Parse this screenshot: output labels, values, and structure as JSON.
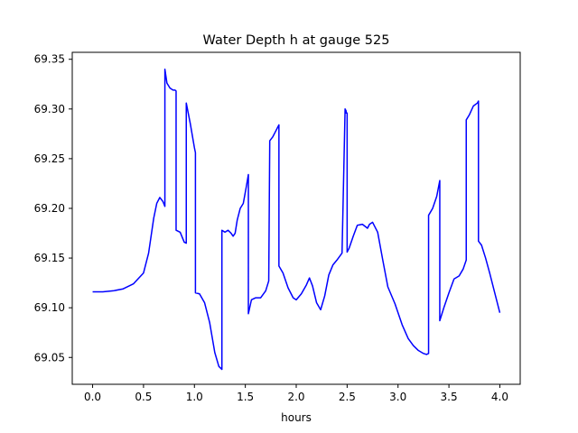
{
  "chart_data": {
    "type": "line",
    "title": "Water Depth h at gauge 525",
    "xlabel": "hours",
    "ylabel": "",
    "xlim": [
      -0.2,
      4.2
    ],
    "ylim": [
      69.023,
      69.357
    ],
    "xticks": [
      0.0,
      0.5,
      1.0,
      1.5,
      2.0,
      2.5,
      3.0,
      3.5,
      4.0
    ],
    "xtick_labels": [
      "0.0",
      "0.5",
      "1.0",
      "1.5",
      "2.0",
      "2.5",
      "3.0",
      "3.5",
      "4.0"
    ],
    "yticks": [
      69.05,
      69.1,
      69.15,
      69.2,
      69.25,
      69.3,
      69.35
    ],
    "ytick_labels": [
      "69.05",
      "69.10",
      "69.15",
      "69.20",
      "69.25",
      "69.30",
      "69.35"
    ],
    "grid": false,
    "line_color": "#0000ff",
    "series": [
      {
        "x": [
          0.0,
          0.1,
          0.2,
          0.3,
          0.4,
          0.5,
          0.55,
          0.6,
          0.63,
          0.66,
          0.69,
          0.71,
          0.71,
          0.73,
          0.76,
          0.79,
          0.81,
          0.82,
          0.82,
          0.86,
          0.9,
          0.92,
          0.92,
          0.96,
          1.0,
          1.01,
          1.01,
          1.05,
          1.1,
          1.15,
          1.2,
          1.24,
          1.27,
          1.27,
          1.3,
          1.33,
          1.36,
          1.38,
          1.4,
          1.42,
          1.45,
          1.48,
          1.51,
          1.53,
          1.53,
          1.56,
          1.6,
          1.65,
          1.7,
          1.73,
          1.74,
          1.74,
          1.77,
          1.8,
          1.82,
          1.83,
          1.83,
          1.87,
          1.92,
          1.97,
          2.0,
          2.05,
          2.1,
          2.13,
          2.16,
          2.2,
          2.24,
          2.28,
          2.32,
          2.36,
          2.4,
          2.45,
          2.48,
          2.49,
          2.49,
          2.5,
          2.5,
          2.52,
          2.56,
          2.6,
          2.65,
          2.7,
          2.72,
          2.75,
          2.8,
          2.85,
          2.9,
          2.97,
          3.04,
          3.1,
          3.15,
          3.2,
          3.25,
          3.28,
          3.3,
          3.3,
          3.34,
          3.38,
          3.41,
          3.41,
          3.45,
          3.5,
          3.55,
          3.6,
          3.64,
          3.67,
          3.67,
          3.7,
          3.74,
          3.78,
          3.79,
          3.79,
          3.82,
          3.86,
          3.9,
          3.95,
          4.0
        ],
        "y": [
          69.116,
          69.116,
          69.117,
          69.119,
          69.124,
          69.135,
          69.155,
          69.19,
          69.205,
          69.211,
          69.207,
          69.202,
          69.34,
          69.326,
          69.321,
          69.319,
          69.319,
          69.318,
          69.178,
          69.176,
          69.166,
          69.165,
          69.306,
          69.285,
          69.261,
          69.256,
          69.115,
          69.114,
          69.105,
          69.085,
          69.055,
          69.041,
          69.038,
          69.178,
          69.176,
          69.178,
          69.175,
          69.172,
          69.175,
          69.188,
          69.2,
          69.205,
          69.222,
          69.234,
          69.094,
          69.108,
          69.11,
          69.11,
          69.117,
          69.127,
          69.268,
          69.268,
          69.272,
          69.278,
          69.282,
          69.284,
          69.142,
          69.135,
          69.12,
          69.11,
          69.108,
          69.114,
          69.123,
          69.13,
          69.122,
          69.105,
          69.098,
          69.112,
          69.133,
          69.143,
          69.148,
          69.155,
          69.3,
          69.298,
          69.296,
          69.296,
          69.156,
          69.16,
          69.172,
          69.183,
          69.184,
          69.18,
          69.184,
          69.186,
          69.176,
          69.148,
          69.121,
          69.104,
          69.083,
          69.069,
          69.062,
          69.057,
          69.054,
          69.053,
          69.054,
          69.193,
          69.2,
          69.212,
          69.228,
          69.087,
          69.1,
          69.115,
          69.129,
          69.132,
          69.139,
          69.148,
          69.289,
          69.294,
          69.303,
          69.306,
          69.308,
          69.167,
          69.163,
          69.15,
          69.135,
          69.115,
          69.095
        ]
      }
    ]
  }
}
